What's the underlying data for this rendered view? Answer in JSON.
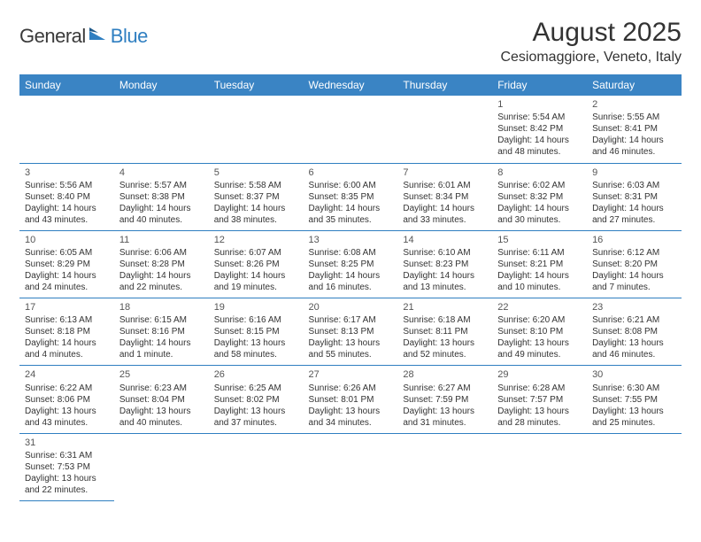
{
  "logo": {
    "text1": "General",
    "text2": "Blue"
  },
  "title": "August 2025",
  "location": "Cesiomaggiore, Veneto, Italy",
  "colors": {
    "header_bg": "#3a84c4",
    "header_text": "#ffffff",
    "border": "#2f7fc1",
    "logo_blue": "#2f7fc1",
    "text": "#333333"
  },
  "typography": {
    "title_fontsize": 30,
    "location_fontsize": 16,
    "weekday_fontsize": 12,
    "cell_fontsize": 10,
    "daynum_fontsize": 11
  },
  "weekdays": [
    "Sunday",
    "Monday",
    "Tuesday",
    "Wednesday",
    "Thursday",
    "Friday",
    "Saturday"
  ],
  "grid": [
    [
      null,
      null,
      null,
      null,
      null,
      {
        "n": "1",
        "sr": "Sunrise: 5:54 AM",
        "ss": "Sunset: 8:42 PM",
        "d1": "Daylight: 14 hours",
        "d2": "and 48 minutes."
      },
      {
        "n": "2",
        "sr": "Sunrise: 5:55 AM",
        "ss": "Sunset: 8:41 PM",
        "d1": "Daylight: 14 hours",
        "d2": "and 46 minutes."
      }
    ],
    [
      {
        "n": "3",
        "sr": "Sunrise: 5:56 AM",
        "ss": "Sunset: 8:40 PM",
        "d1": "Daylight: 14 hours",
        "d2": "and 43 minutes."
      },
      {
        "n": "4",
        "sr": "Sunrise: 5:57 AM",
        "ss": "Sunset: 8:38 PM",
        "d1": "Daylight: 14 hours",
        "d2": "and 40 minutes."
      },
      {
        "n": "5",
        "sr": "Sunrise: 5:58 AM",
        "ss": "Sunset: 8:37 PM",
        "d1": "Daylight: 14 hours",
        "d2": "and 38 minutes."
      },
      {
        "n": "6",
        "sr": "Sunrise: 6:00 AM",
        "ss": "Sunset: 8:35 PM",
        "d1": "Daylight: 14 hours",
        "d2": "and 35 minutes."
      },
      {
        "n": "7",
        "sr": "Sunrise: 6:01 AM",
        "ss": "Sunset: 8:34 PM",
        "d1": "Daylight: 14 hours",
        "d2": "and 33 minutes."
      },
      {
        "n": "8",
        "sr": "Sunrise: 6:02 AM",
        "ss": "Sunset: 8:32 PM",
        "d1": "Daylight: 14 hours",
        "d2": "and 30 minutes."
      },
      {
        "n": "9",
        "sr": "Sunrise: 6:03 AM",
        "ss": "Sunset: 8:31 PM",
        "d1": "Daylight: 14 hours",
        "d2": "and 27 minutes."
      }
    ],
    [
      {
        "n": "10",
        "sr": "Sunrise: 6:05 AM",
        "ss": "Sunset: 8:29 PM",
        "d1": "Daylight: 14 hours",
        "d2": "and 24 minutes."
      },
      {
        "n": "11",
        "sr": "Sunrise: 6:06 AM",
        "ss": "Sunset: 8:28 PM",
        "d1": "Daylight: 14 hours",
        "d2": "and 22 minutes."
      },
      {
        "n": "12",
        "sr": "Sunrise: 6:07 AM",
        "ss": "Sunset: 8:26 PM",
        "d1": "Daylight: 14 hours",
        "d2": "and 19 minutes."
      },
      {
        "n": "13",
        "sr": "Sunrise: 6:08 AM",
        "ss": "Sunset: 8:25 PM",
        "d1": "Daylight: 14 hours",
        "d2": "and 16 minutes."
      },
      {
        "n": "14",
        "sr": "Sunrise: 6:10 AM",
        "ss": "Sunset: 8:23 PM",
        "d1": "Daylight: 14 hours",
        "d2": "and 13 minutes."
      },
      {
        "n": "15",
        "sr": "Sunrise: 6:11 AM",
        "ss": "Sunset: 8:21 PM",
        "d1": "Daylight: 14 hours",
        "d2": "and 10 minutes."
      },
      {
        "n": "16",
        "sr": "Sunrise: 6:12 AM",
        "ss": "Sunset: 8:20 PM",
        "d1": "Daylight: 14 hours",
        "d2": "and 7 minutes."
      }
    ],
    [
      {
        "n": "17",
        "sr": "Sunrise: 6:13 AM",
        "ss": "Sunset: 8:18 PM",
        "d1": "Daylight: 14 hours",
        "d2": "and 4 minutes."
      },
      {
        "n": "18",
        "sr": "Sunrise: 6:15 AM",
        "ss": "Sunset: 8:16 PM",
        "d1": "Daylight: 14 hours",
        "d2": "and 1 minute."
      },
      {
        "n": "19",
        "sr": "Sunrise: 6:16 AM",
        "ss": "Sunset: 8:15 PM",
        "d1": "Daylight: 13 hours",
        "d2": "and 58 minutes."
      },
      {
        "n": "20",
        "sr": "Sunrise: 6:17 AM",
        "ss": "Sunset: 8:13 PM",
        "d1": "Daylight: 13 hours",
        "d2": "and 55 minutes."
      },
      {
        "n": "21",
        "sr": "Sunrise: 6:18 AM",
        "ss": "Sunset: 8:11 PM",
        "d1": "Daylight: 13 hours",
        "d2": "and 52 minutes."
      },
      {
        "n": "22",
        "sr": "Sunrise: 6:20 AM",
        "ss": "Sunset: 8:10 PM",
        "d1": "Daylight: 13 hours",
        "d2": "and 49 minutes."
      },
      {
        "n": "23",
        "sr": "Sunrise: 6:21 AM",
        "ss": "Sunset: 8:08 PM",
        "d1": "Daylight: 13 hours",
        "d2": "and 46 minutes."
      }
    ],
    [
      {
        "n": "24",
        "sr": "Sunrise: 6:22 AM",
        "ss": "Sunset: 8:06 PM",
        "d1": "Daylight: 13 hours",
        "d2": "and 43 minutes."
      },
      {
        "n": "25",
        "sr": "Sunrise: 6:23 AM",
        "ss": "Sunset: 8:04 PM",
        "d1": "Daylight: 13 hours",
        "d2": "and 40 minutes."
      },
      {
        "n": "26",
        "sr": "Sunrise: 6:25 AM",
        "ss": "Sunset: 8:02 PM",
        "d1": "Daylight: 13 hours",
        "d2": "and 37 minutes."
      },
      {
        "n": "27",
        "sr": "Sunrise: 6:26 AM",
        "ss": "Sunset: 8:01 PM",
        "d1": "Daylight: 13 hours",
        "d2": "and 34 minutes."
      },
      {
        "n": "28",
        "sr": "Sunrise: 6:27 AM",
        "ss": "Sunset: 7:59 PM",
        "d1": "Daylight: 13 hours",
        "d2": "and 31 minutes."
      },
      {
        "n": "29",
        "sr": "Sunrise: 6:28 AM",
        "ss": "Sunset: 7:57 PM",
        "d1": "Daylight: 13 hours",
        "d2": "and 28 minutes."
      },
      {
        "n": "30",
        "sr": "Sunrise: 6:30 AM",
        "ss": "Sunset: 7:55 PM",
        "d1": "Daylight: 13 hours",
        "d2": "and 25 minutes."
      }
    ],
    [
      {
        "n": "31",
        "sr": "Sunrise: 6:31 AM",
        "ss": "Sunset: 7:53 PM",
        "d1": "Daylight: 13 hours",
        "d2": "and 22 minutes."
      },
      null,
      null,
      null,
      null,
      null,
      null
    ]
  ]
}
